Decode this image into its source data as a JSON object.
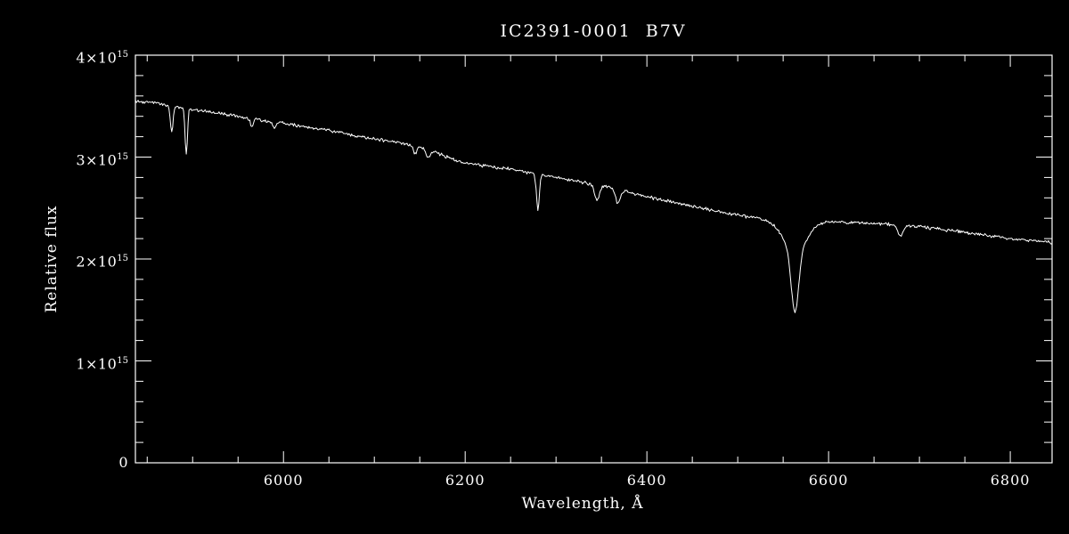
{
  "window": {
    "background": "#000000",
    "foreground": "#ffffff"
  },
  "chart_data": {
    "type": "line",
    "title": "IC2391-0001  B7V",
    "xlabel": "Wavelength, Å",
    "ylabel": "Relative flux",
    "xlim": [
      5837,
      6846
    ],
    "ylim": [
      0,
      4000000000000000.0
    ],
    "grid": false,
    "legend": "none",
    "background": "#000000",
    "axis_color": "#ffffff",
    "x_ticks": [
      {
        "v": 6000,
        "label": "6000"
      },
      {
        "v": 6200,
        "label": "6200"
      },
      {
        "v": 6400,
        "label": "6400"
      },
      {
        "v": 6600,
        "label": "6600"
      },
      {
        "v": 6800,
        "label": "6800"
      }
    ],
    "x_minor_step": 50,
    "y_ticks": [
      {
        "v": 0,
        "mantissa": "0",
        "exp": ""
      },
      {
        "v": 1000000000000000.0,
        "mantissa": "1×10",
        "exp": "15"
      },
      {
        "v": 2000000000000000.0,
        "mantissa": "2×10",
        "exp": "15"
      },
      {
        "v": 3000000000000000.0,
        "mantissa": "3×10",
        "exp": "15"
      },
      {
        "v": 4000000000000000.0,
        "mantissa": "4×10",
        "exp": "15"
      }
    ],
    "y_minor_step": 200000000000000.0,
    "series": [
      {
        "name": "IC2391-0001",
        "color": "#ffffff",
        "continuum_points": [
          [
            5837,
            3550000000000000.0
          ],
          [
            5860,
            3530000000000000.0
          ],
          [
            5900,
            3470000000000000.0
          ],
          [
            5950,
            3400000000000000.0
          ],
          [
            6000,
            3330000000000000.0
          ],
          [
            6050,
            3260000000000000.0
          ],
          [
            6100,
            3180000000000000.0
          ],
          [
            6150,
            3100000000000000.0
          ],
          [
            6200,
            2940000000000000.0
          ],
          [
            6250,
            2880000000000000.0
          ],
          [
            6300,
            2800000000000000.0
          ],
          [
            6350,
            2720000000000000.0
          ],
          [
            6400,
            2610000000000000.0
          ],
          [
            6450,
            2520000000000000.0
          ],
          [
            6500,
            2430000000000000.0
          ],
          [
            6530,
            2390000000000000.0
          ],
          [
            6560,
            2380000000000000.0
          ],
          [
            6600,
            2370000000000000.0
          ],
          [
            6650,
            2350000000000000.0
          ],
          [
            6700,
            2320000000000000.0
          ],
          [
            6750,
            2260000000000000.0
          ],
          [
            6800,
            2200000000000000.0
          ],
          [
            6846,
            2160000000000000.0
          ]
        ],
        "absorption_lines": [
          {
            "center": 5877,
            "depth": 260000000000000.0,
            "sigma": 1.5
          },
          {
            "center": 5893,
            "depth": 460000000000000.0,
            "sigma": 1.3
          },
          {
            "center": 5965,
            "depth": 80000000000000.0,
            "sigma": 1.5
          },
          {
            "center": 5990,
            "depth": 60000000000000.0,
            "sigma": 2.0
          },
          {
            "center": 6145,
            "depth": 70000000000000.0,
            "sigma": 2.0
          },
          {
            "center": 6159,
            "depth": 80000000000000.0,
            "sigma": 2.0
          },
          {
            "center": 6280,
            "depth": 340000000000000.0,
            "sigma": 1.6
          },
          {
            "center": 6345,
            "depth": 160000000000000.0,
            "sigma": 2.5
          },
          {
            "center": 6368,
            "depth": 130000000000000.0,
            "sigma": 2.5
          },
          {
            "center": 6563,
            "depth": 600000000000000.0,
            "sigma": 4.0
          },
          {
            "center": 6563,
            "depth": 300000000000000.0,
            "sigma": 13.0
          },
          {
            "center": 6679,
            "depth": 110000000000000.0,
            "sigma": 3.0
          }
        ],
        "noise_amplitude": 12000000000000.0
      }
    ]
  }
}
